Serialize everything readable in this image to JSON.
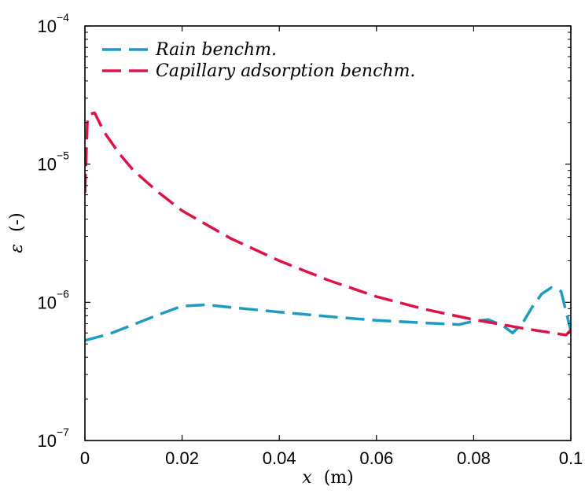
{
  "chart_data": {
    "type": "line",
    "title": "",
    "x_var": "x",
    "x_unit": "(m)",
    "y_var": "ε",
    "y_unit": "(-)",
    "xlim": [
      0,
      0.1
    ],
    "ylim": [
      1e-07,
      0.0001
    ],
    "y_scale": "log",
    "grid": false,
    "legend_position": "top-left",
    "x_ticks": [
      "0",
      "0.02",
      "0.04",
      "0.06",
      "0.08",
      "0.1"
    ],
    "y_tick_mantissa": "10",
    "y_tick_exponents": [
      "−7",
      "−6",
      "−5",
      "−4"
    ],
    "series": [
      {
        "name": "Rain benchm.",
        "color": "#1f9ac0",
        "style": "dashed",
        "x": [
          0,
          0.005,
          0.01,
          0.015,
          0.02,
          0.025,
          0.03,
          0.04,
          0.05,
          0.06,
          0.07,
          0.077,
          0.08,
          0.083,
          0.086,
          0.088,
          0.09,
          0.092,
          0.094,
          0.096,
          0.098,
          0.1
        ],
        "y": [
          5.3e-07,
          5.9e-07,
          6.9e-07,
          8.1e-07,
          9.4e-07,
          9.6e-07,
          9.2e-07,
          8.5e-07,
          7.9e-07,
          7.4e-07,
          7.1e-07,
          6.9e-07,
          7.3e-07,
          7.5e-07,
          6.8e-07,
          6e-07,
          7e-07,
          9.2e-07,
          1.15e-06,
          1.28e-06,
          1.2e-06,
          6.2e-07
        ]
      },
      {
        "name": "Capillary adsorption benchm.",
        "color": "#dc1446",
        "style": "dashed",
        "x": [
          0,
          0.0005,
          0.001,
          0.002,
          0.004,
          0.007,
          0.01,
          0.015,
          0.02,
          0.03,
          0.04,
          0.05,
          0.06,
          0.07,
          0.08,
          0.09,
          0.099,
          0.1
        ],
        "y": [
          6.2e-06,
          2e-05,
          2.3e-05,
          2.35e-05,
          1.7e-05,
          1.2e-05,
          9e-06,
          6.3e-06,
          4.6e-06,
          2.9e-06,
          2e-06,
          1.45e-06,
          1.1e-06,
          8.9e-07,
          7.5e-07,
          6.5e-07,
          5.8e-07,
          6.3e-07
        ]
      }
    ]
  }
}
